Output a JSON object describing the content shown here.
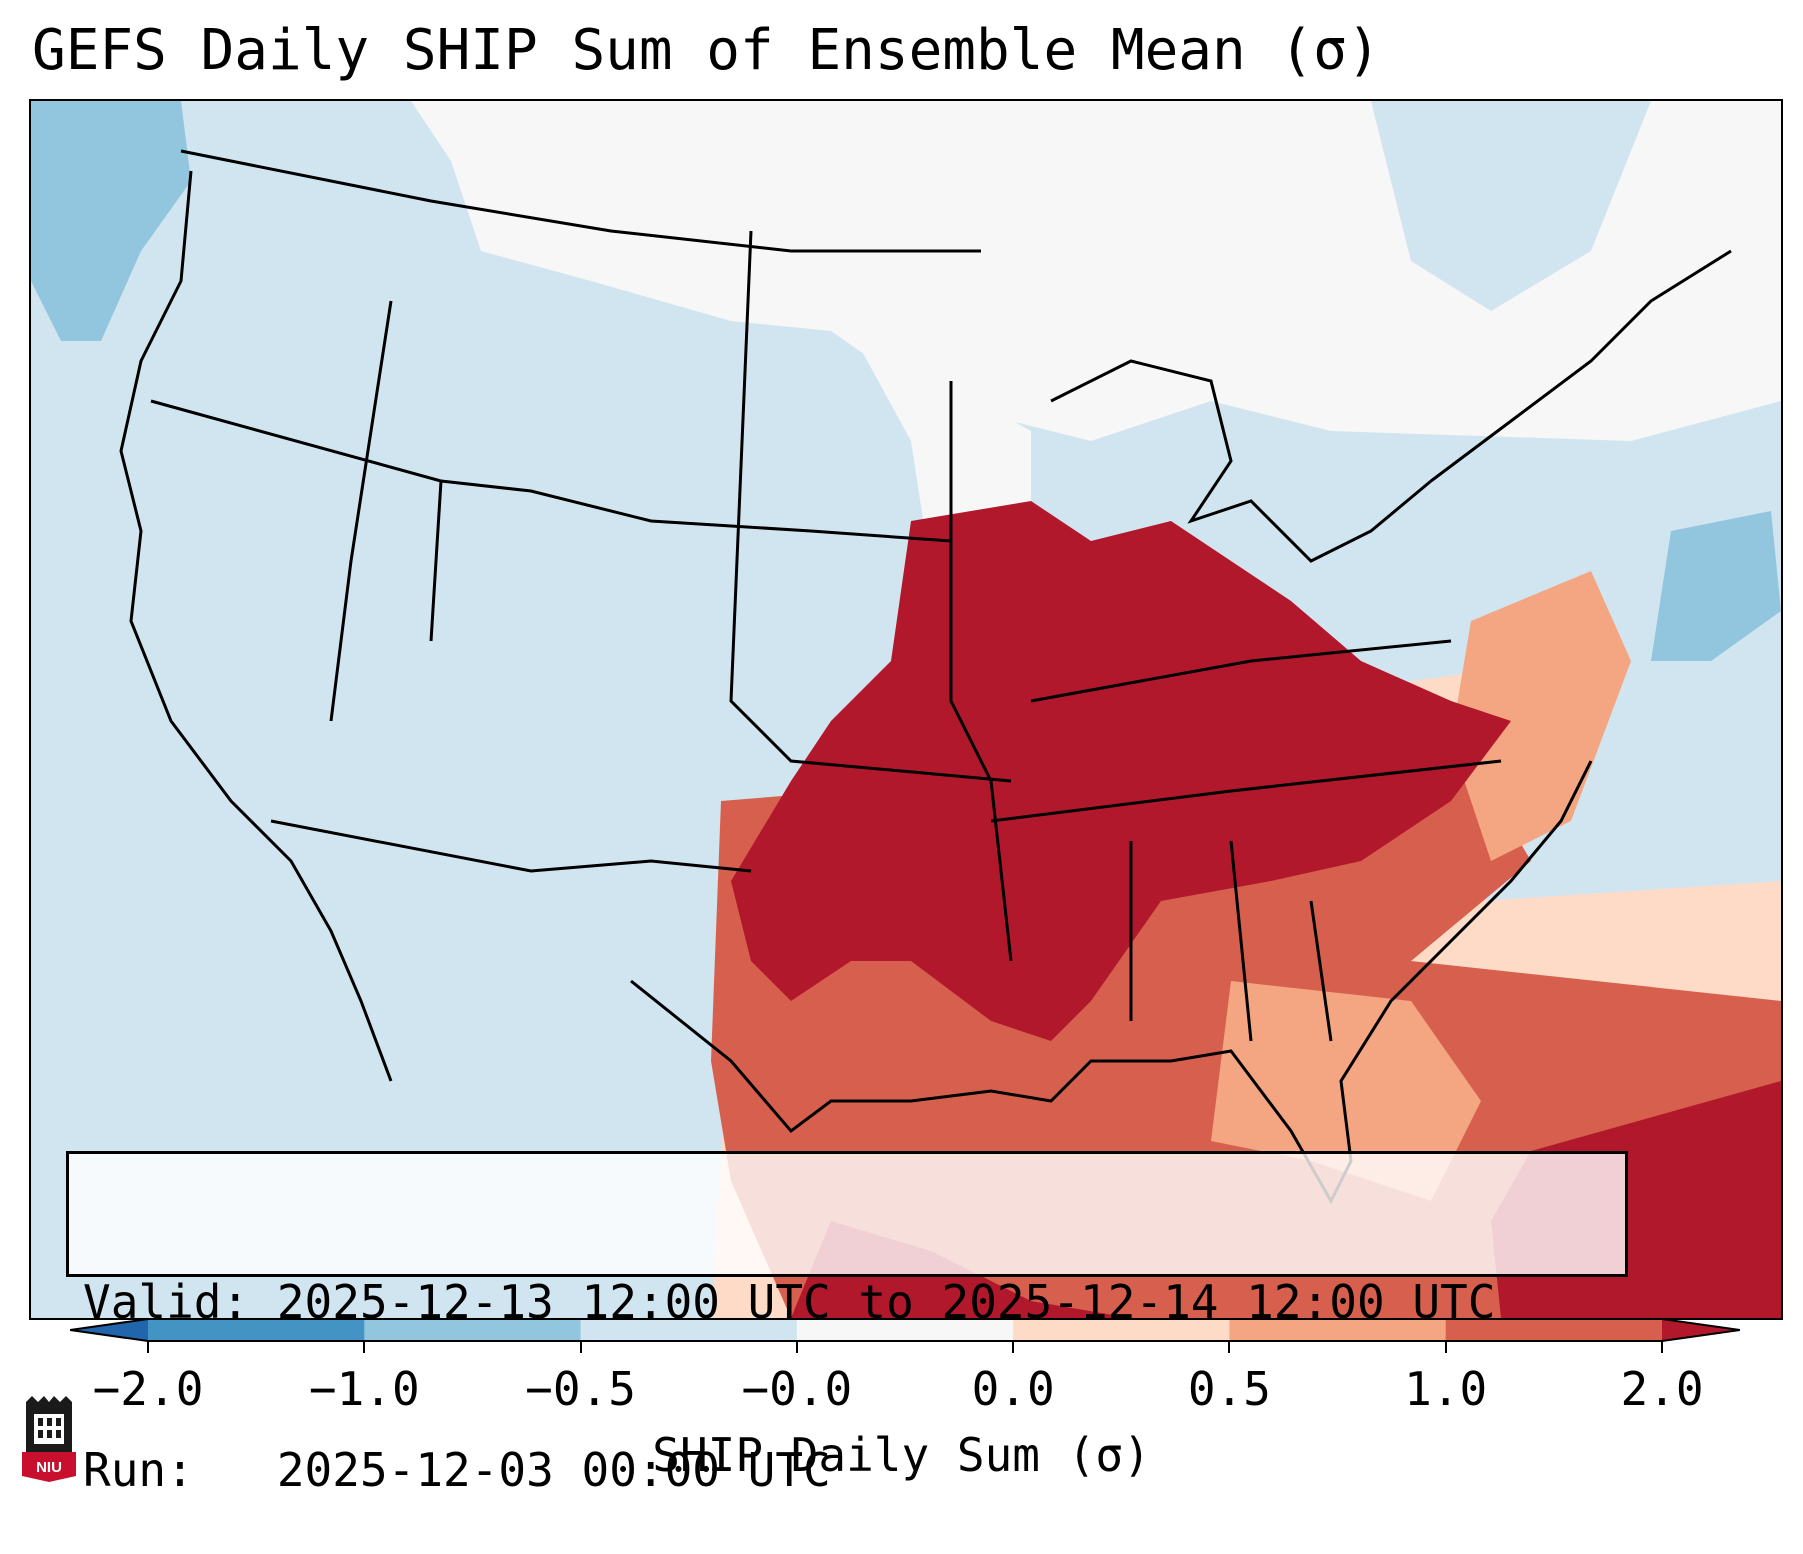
{
  "title": "GEFS Daily SHIP Sum of Ensemble Mean (σ)",
  "info": {
    "valid": "Valid: 2025-12-13 12:00 UTC to 2025-12-14 12:00 UTC",
    "run": "Run:   2025-12-03 00:00 UTC"
  },
  "colorbar": {
    "label": "SHIP Daily Sum (σ)",
    "ticks": [
      "−2.0",
      "−1.0",
      "−0.5",
      "−0.0",
      "0.0",
      "0.5",
      "1.0",
      "2.0"
    ],
    "colors": [
      "#2166ac",
      "#4393c3",
      "#92c5de",
      "#d1e5f0",
      "#f7f7f7",
      "#fddbc7",
      "#f4a582",
      "#d6604d",
      "#b2182b"
    ]
  },
  "logo": {
    "text": "NIU",
    "icon": "niu-logo-icon"
  },
  "map": {
    "background_color": "#d1e5f0",
    "regions": [
      {
        "name": "northern-plains-neutral",
        "category": "neutral"
      },
      {
        "name": "midsouth-core-high",
        "category": "very-high"
      },
      {
        "name": "gulf-coast-high",
        "category": "high"
      },
      {
        "name": "southeast-moderate",
        "category": "moderate"
      },
      {
        "name": "atlantic-low",
        "category": "low"
      }
    ]
  }
}
